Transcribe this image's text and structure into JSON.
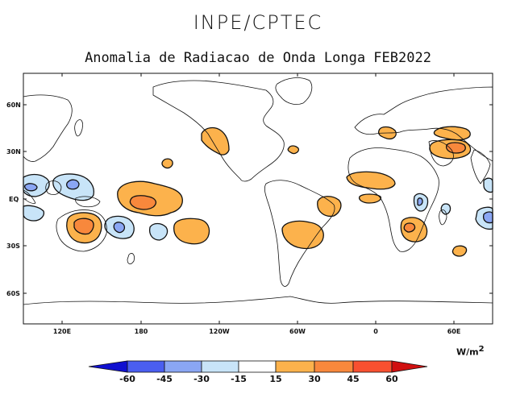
{
  "header": {
    "institution": "INPE/CPTEC",
    "map_title": "Anomalia de Radiacao de Onda Longa FEB2022"
  },
  "axes": {
    "lat_labels": [
      "60N",
      "30N",
      "EQ",
      "30S",
      "60S"
    ],
    "lon_labels": [
      "120E",
      "180",
      "120W",
      "60W",
      "0",
      "60E"
    ]
  },
  "colorbar": {
    "units": "W/m",
    "units_exponent": "2",
    "labels": [
      "-60",
      "-45",
      "-30",
      "-15",
      "15",
      "30",
      "45",
      "60"
    ],
    "colors": [
      "#1010d0",
      "#4a5ef0",
      "#8aa6f4",
      "#c8e4f8",
      "#ffffff",
      "#fcb24c",
      "#f8883c",
      "#f85030",
      "#d01010"
    ]
  },
  "palette": {
    "positive_light": "#fcb24c",
    "positive_medium": "#f8883c",
    "negative_light": "#c8e4f8",
    "negative_medium": "#8aa6f4",
    "land_outline": "#111111"
  }
}
